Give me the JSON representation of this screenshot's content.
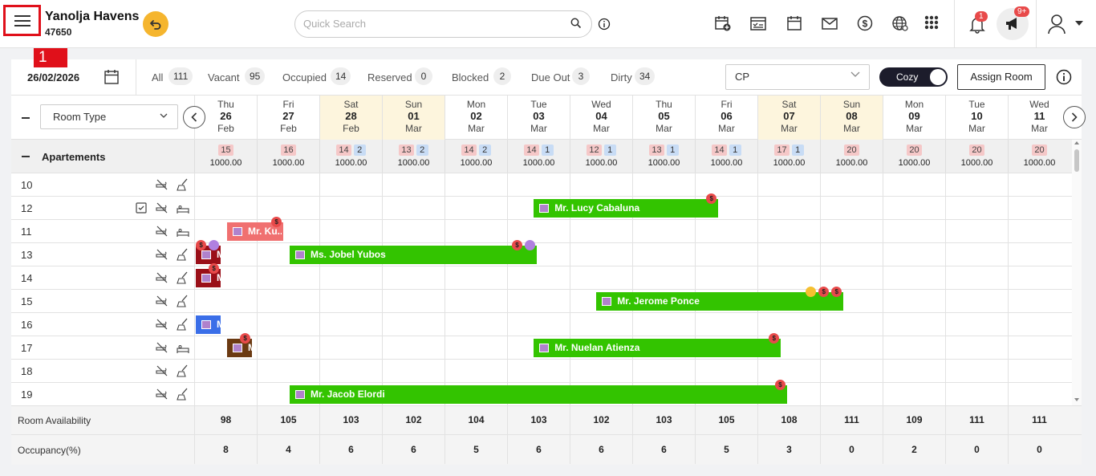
{
  "header": {
    "hotel_name": "Yanolja Havens",
    "hotel_id": "47650",
    "annotation_number": "1",
    "search_placeholder": "Quick Search",
    "notification_count": "1",
    "announcement_count": "9+",
    "icons": [
      "menu-icon",
      "back-icon",
      "search-icon",
      "info-icon",
      "new-booking-icon",
      "checklist-icon",
      "calendar-icon",
      "mail-icon",
      "dollar-icon",
      "globe-icon",
      "apps-icon",
      "bell-icon",
      "megaphone-icon",
      "user-icon"
    ]
  },
  "filters": {
    "date": "26/02/2026",
    "items": [
      {
        "label": "All",
        "count": "111"
      },
      {
        "label": "Vacant",
        "count": "95"
      },
      {
        "label": "Occupied",
        "count": "14"
      },
      {
        "label": "Reserved",
        "count": "0"
      },
      {
        "label": "Blocked",
        "count": "2"
      },
      {
        "label": "Due Out",
        "count": "3"
      },
      {
        "label": "Dirty",
        "count": "34"
      }
    ],
    "rate_plan": "CP",
    "view_toggle": "Cozy",
    "assign_label": "Assign Room"
  },
  "grid_header": {
    "room_type_label": "Room Type",
    "days": [
      {
        "day": "Thu",
        "date": "26",
        "month": "Feb",
        "weekend": false
      },
      {
        "day": "Fri",
        "date": "27",
        "month": "Feb",
        "weekend": false
      },
      {
        "day": "Sat",
        "date": "28",
        "month": "Feb",
        "weekend": true
      },
      {
        "day": "Sun",
        "date": "01",
        "month": "Mar",
        "weekend": true
      },
      {
        "day": "Mon",
        "date": "02",
        "month": "Mar",
        "weekend": false
      },
      {
        "day": "Tue",
        "date": "03",
        "month": "Mar",
        "weekend": false
      },
      {
        "day": "Wed",
        "date": "04",
        "month": "Mar",
        "weekend": false
      },
      {
        "day": "Thu",
        "date": "05",
        "month": "Mar",
        "weekend": false
      },
      {
        "day": "Fri",
        "date": "06",
        "month": "Mar",
        "weekend": false
      },
      {
        "day": "Sat",
        "date": "07",
        "month": "Mar",
        "weekend": true
      },
      {
        "day": "Sun",
        "date": "08",
        "month": "Mar",
        "weekend": true
      },
      {
        "day": "Mon",
        "date": "09",
        "month": "Mar",
        "weekend": false
      },
      {
        "day": "Tue",
        "date": "10",
        "month": "Mar",
        "weekend": false
      },
      {
        "day": "Wed",
        "date": "11",
        "month": "Mar",
        "weekend": false
      }
    ]
  },
  "group": {
    "name": "Apartements",
    "cells": [
      {
        "avail": "15",
        "blocked": "",
        "price": "1000.00"
      },
      {
        "avail": "16",
        "blocked": "",
        "price": "1000.00"
      },
      {
        "avail": "14",
        "blocked": "2",
        "price": "1000.00"
      },
      {
        "avail": "13",
        "blocked": "2",
        "price": "1000.00"
      },
      {
        "avail": "14",
        "blocked": "2",
        "price": "1000.00"
      },
      {
        "avail": "14",
        "blocked": "1",
        "price": "1000.00"
      },
      {
        "avail": "12",
        "blocked": "1",
        "price": "1000.00"
      },
      {
        "avail": "13",
        "blocked": "1",
        "price": "1000.00"
      },
      {
        "avail": "14",
        "blocked": "1",
        "price": "1000.00"
      },
      {
        "avail": "17",
        "blocked": "1",
        "price": "1000.00"
      },
      {
        "avail": "20",
        "blocked": "",
        "price": "1000.00"
      },
      {
        "avail": "20",
        "blocked": "",
        "price": "1000.00"
      },
      {
        "avail": "20",
        "blocked": "",
        "price": "1000.00"
      },
      {
        "avail": "20",
        "blocked": "",
        "price": "1000.00"
      }
    ]
  },
  "rooms": [
    {
      "number": "10",
      "icons": [
        "no-smoking-icon",
        "broom-icon"
      ]
    },
    {
      "number": "12",
      "icons": [
        "check-icon",
        "no-smoking-icon",
        "bed-icon"
      ]
    },
    {
      "number": "11",
      "icons": [
        "no-smoking-icon",
        "bed-icon"
      ]
    },
    {
      "number": "13",
      "icons": [
        "no-smoking-icon",
        "broom-icon"
      ]
    },
    {
      "number": "14",
      "icons": [
        "no-smoking-icon",
        "broom-icon"
      ]
    },
    {
      "number": "15",
      "icons": [
        "no-smoking-icon",
        "broom-icon"
      ]
    },
    {
      "number": "16",
      "icons": [
        "no-smoking-icon",
        "broom-icon"
      ]
    },
    {
      "number": "17",
      "icons": [
        "no-smoking-icon",
        "bed-icon"
      ]
    },
    {
      "number": "18",
      "icons": [
        "no-smoking-icon",
        "broom-icon"
      ]
    },
    {
      "number": "19",
      "icons": [
        "no-smoking-icon",
        "broom-icon"
      ]
    }
  ],
  "bookings": [
    {
      "row": 1,
      "start": 5.4,
      "nights": 3.0,
      "name": "Mr. Lucy Cabaluna",
      "color": "#33c400",
      "flags": [
        "dollar"
      ]
    },
    {
      "row": 2,
      "start": 0.5,
      "nights": 0.95,
      "name": "Mr. Ku...",
      "color": "#f07070",
      "flags": [
        "dollar"
      ]
    },
    {
      "row": 3,
      "start": 0.0,
      "nights": 0.45,
      "name": "M",
      "color": "#9a0f18",
      "flags": [
        "dollar",
        "person"
      ]
    },
    {
      "row": 3,
      "start": 1.5,
      "nights": 4.0,
      "name": "Ms. Jobel Yubos",
      "color": "#33c400",
      "flags": [
        "dollar",
        "person"
      ]
    },
    {
      "row": 4,
      "start": 0.0,
      "nights": 0.45,
      "name": "M",
      "color": "#9a0f18",
      "flags": [
        "dollar"
      ]
    },
    {
      "row": 5,
      "start": 6.4,
      "nights": 4.0,
      "name": "Mr. Jerome Ponce",
      "color": "#33c400",
      "flags": [
        "crown",
        "dollar",
        "dollar"
      ]
    },
    {
      "row": 6,
      "start": 0.0,
      "nights": 0.45,
      "name": "M",
      "color": "#3a6ee8",
      "flags": []
    },
    {
      "row": 7,
      "start": 0.5,
      "nights": 0.45,
      "name": "M",
      "color": "#6b3a12",
      "flags": [
        "dollar"
      ]
    },
    {
      "row": 7,
      "start": 5.4,
      "nights": 4.0,
      "name": "Mr. Nuelan Atienza",
      "color": "#33c400",
      "flags": [
        "dollar"
      ]
    },
    {
      "row": 9,
      "start": 1.5,
      "nights": 8.0,
      "name": "Mr. Jacob Elordi",
      "color": "#33c400",
      "flags": [
        "dollar"
      ]
    }
  ],
  "summary": {
    "availability_label": "Room Availability",
    "availability": [
      "98",
      "105",
      "103",
      "102",
      "104",
      "103",
      "102",
      "103",
      "105",
      "108",
      "111",
      "109",
      "111",
      "111"
    ],
    "occupancy_label": "Occupancy(%)",
    "occupancy": [
      "8",
      "4",
      "6",
      "6",
      "5",
      "6",
      "6",
      "6",
      "5",
      "3",
      "0",
      "2",
      "0",
      "0"
    ]
  }
}
